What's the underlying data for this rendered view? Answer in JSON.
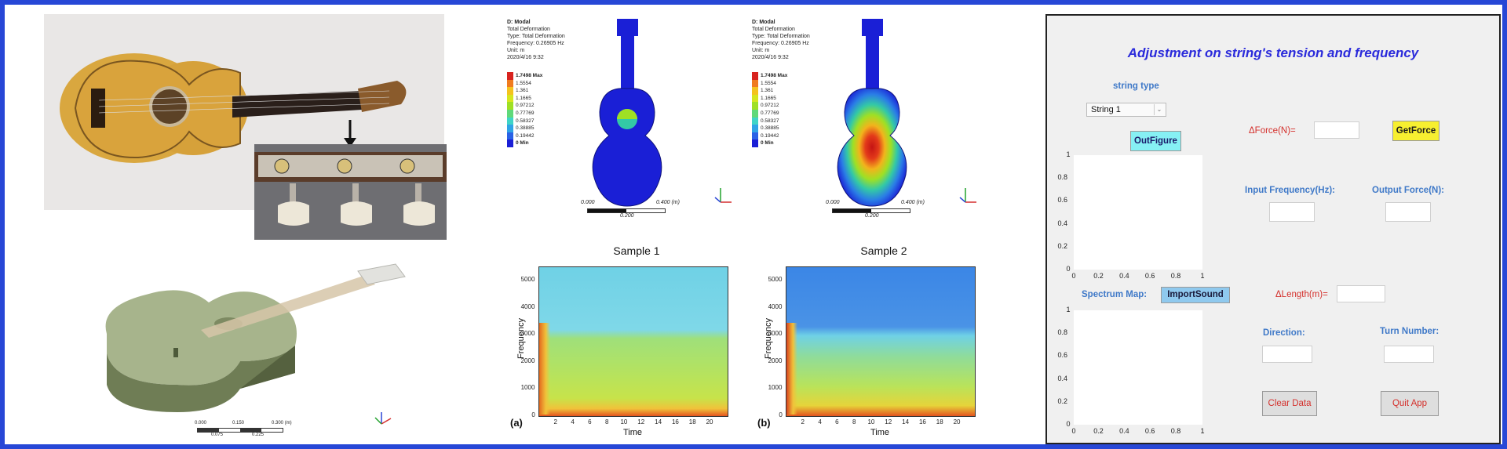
{
  "fea": {
    "left": {
      "header": [
        "D: Modal",
        "Total Deformation",
        "Type: Total Deformation",
        "Frequency: 0.26905 Hz",
        "Unit: m",
        "2020/4/16 9:32"
      ],
      "legend": [
        "1.7498 Max",
        "1.5554",
        "1.361",
        "1.1665",
        "0.97212",
        "0.77769",
        "0.58327",
        "0.38885",
        "0.19442",
        "0 Min"
      ],
      "scale": {
        "start": "0.000",
        "end": "0.400 (m)",
        "mid": "0.200"
      }
    },
    "right": {
      "header": [
        "D: Modal",
        "Total Deformation",
        "Type: Total Deformation",
        "Frequency: 0.26905 Hz",
        "Unit: m",
        "2020/4/16 9:32"
      ],
      "legend": [
        "1.7498 Max",
        "1.5554",
        "1.361",
        "1.1665",
        "0.97212",
        "0.77769",
        "0.58327",
        "0.38885",
        "0.19442",
        "0 Min"
      ],
      "scale": {
        "start": "0.000",
        "end": "0.400 (m)",
        "mid": "0.200"
      }
    },
    "legend_colors": [
      "#d8231f",
      "#f07b1e",
      "#f4c31e",
      "#d6e61f",
      "#9fe024",
      "#5fd97a",
      "#3fd4c7",
      "#2fa4e6",
      "#2a62e6",
      "#1a1fd6"
    ]
  },
  "model3d": {
    "scale_top": [
      "0.000",
      "0.150",
      "0.300 (m)"
    ],
    "scale_bottom": [
      "0.075",
      "0.225"
    ]
  },
  "spectrograms": {
    "sample1": {
      "title": "Sample 1",
      "letter": "(a)"
    },
    "sample2": {
      "title": "Sample 2",
      "letter": "(b)"
    },
    "xlabel": "Time",
    "ylabel": "Frequency",
    "yticks": [
      "0",
      "1000",
      "2000",
      "3000",
      "4000",
      "5000"
    ],
    "xticks": [
      "2",
      "4",
      "6",
      "8",
      "10",
      "12",
      "14",
      "16",
      "18",
      "20"
    ]
  },
  "app": {
    "title": "Adjustment on string's tension and frequency",
    "string_type_label": "string type",
    "string_select_value": "String 1",
    "outfigure_label": "OutFigure",
    "delta_force_label": "ΔForce(N)=",
    "getforce_label": "GetForce",
    "input_freq_label": "Input Frequency(Hz):",
    "output_force_label": "Output Force(N):",
    "spectrum_map_label": "Spectrum Map:",
    "importsound_label": "ImportSound",
    "delta_length_label": "ΔLength(m)=",
    "direction_label": "Direction:",
    "turn_number_label": "Turn Number:",
    "clear_label": "Clear Data",
    "quit_label": "Quit App",
    "axis_ticks_y": [
      "0",
      "0.2",
      "0.4",
      "0.6",
      "0.8",
      "1"
    ],
    "axis_ticks_x": [
      "0",
      "0.2",
      "0.4",
      "0.6",
      "0.8",
      "1"
    ],
    "colors": {
      "title": "#2a2adb",
      "label_blue": "#3f79c8",
      "label_red": "#d4302c",
      "outfigure_bg": "#86f0f4",
      "getforce_bg": "#f7ef30",
      "importsound_bg": "#8fc9ee"
    }
  }
}
